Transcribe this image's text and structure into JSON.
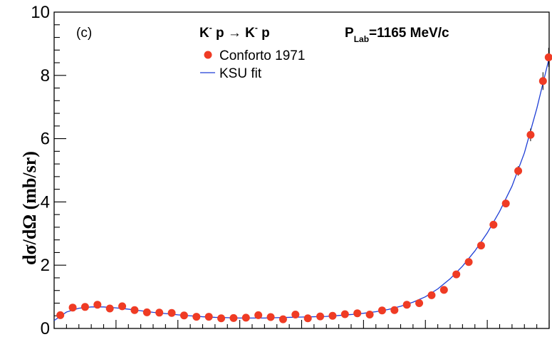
{
  "chart_data": {
    "type": "scatter",
    "panel_label": "(c)",
    "title": {
      "k1": "K",
      "sup1": "-",
      "p1": " p ",
      "arrow": "→",
      "k2": " K",
      "sup2": "-",
      "p2": " p",
      "plab": "P",
      "plab_sub": "Lab",
      "plab_value": "=1165 MeV/c"
    },
    "ylabel": "dσ/dΩ (mb/sr)",
    "xlabel": "",
    "xlim": [
      -1,
      1
    ],
    "ylim": [
      0,
      10
    ],
    "y_ticks": [
      0,
      2,
      4,
      6,
      8,
      10
    ],
    "y_tick_labels": [
      "0",
      "2",
      "4",
      "6",
      "8",
      "10"
    ],
    "legend_position": "top",
    "series": [
      {
        "name": "Conforto 1971",
        "style": "points",
        "color": "#ef3b24",
        "x": [
          -0.975,
          -0.925,
          -0.875,
          -0.825,
          -0.775,
          -0.725,
          -0.675,
          -0.625,
          -0.575,
          -0.525,
          -0.475,
          -0.425,
          -0.375,
          -0.325,
          -0.275,
          -0.225,
          -0.175,
          -0.125,
          -0.075,
          -0.025,
          0.025,
          0.075,
          0.125,
          0.175,
          0.225,
          0.275,
          0.325,
          0.375,
          0.425,
          0.475,
          0.525,
          0.575,
          0.625,
          0.675,
          0.725,
          0.775,
          0.825,
          0.875,
          0.925,
          0.975
        ],
        "y": [
          0.42,
          0.66,
          0.68,
          0.75,
          0.63,
          0.7,
          0.58,
          0.51,
          0.5,
          0.49,
          0.41,
          0.37,
          0.37,
          0.32,
          0.33,
          0.34,
          0.42,
          0.36,
          0.29,
          0.44,
          0.32,
          0.38,
          0.4,
          0.45,
          0.48,
          0.44,
          0.57,
          0.58,
          0.75,
          0.8,
          1.05,
          1.22,
          1.71,
          2.1,
          2.62,
          3.28,
          3.95,
          4.98,
          6.12,
          7.82
        ],
        "err": [
          0.04,
          0.05,
          0.05,
          0.05,
          0.05,
          0.05,
          0.04,
          0.04,
          0.04,
          0.04,
          0.04,
          0.03,
          0.03,
          0.03,
          0.03,
          0.03,
          0.04,
          0.03,
          0.03,
          0.04,
          0.03,
          0.03,
          0.03,
          0.04,
          0.04,
          0.04,
          0.04,
          0.04,
          0.05,
          0.05,
          0.06,
          0.07,
          0.08,
          0.09,
          0.1,
          0.11,
          0.12,
          0.15,
          0.2,
          0.28
        ]
      },
      {
        "name": "KSU fit",
        "style": "line",
        "color": "#1f3fd6",
        "x": [
          -1.0,
          -0.95,
          -0.9,
          -0.85,
          -0.8,
          -0.75,
          -0.7,
          -0.65,
          -0.6,
          -0.55,
          -0.5,
          -0.45,
          -0.4,
          -0.35,
          -0.3,
          -0.25,
          -0.2,
          -0.15,
          -0.1,
          -0.05,
          0.0,
          0.05,
          0.1,
          0.15,
          0.2,
          0.25,
          0.3,
          0.35,
          0.4,
          0.45,
          0.5,
          0.55,
          0.6,
          0.65,
          0.7,
          0.75,
          0.8,
          0.85,
          0.9,
          0.95,
          1.0
        ],
        "y": [
          0.25,
          0.52,
          0.64,
          0.68,
          0.68,
          0.65,
          0.61,
          0.56,
          0.51,
          0.47,
          0.43,
          0.4,
          0.37,
          0.35,
          0.34,
          0.33,
          0.33,
          0.33,
          0.34,
          0.35,
          0.36,
          0.37,
          0.38,
          0.41,
          0.44,
          0.48,
          0.53,
          0.6,
          0.7,
          0.83,
          1.0,
          1.25,
          1.57,
          1.97,
          2.45,
          3.02,
          3.7,
          4.5,
          5.55,
          6.95,
          8.55
        ]
      }
    ],
    "extra_points": [
      {
        "x": 0.998,
        "y": 8.57,
        "err": 0.3
      }
    ]
  }
}
